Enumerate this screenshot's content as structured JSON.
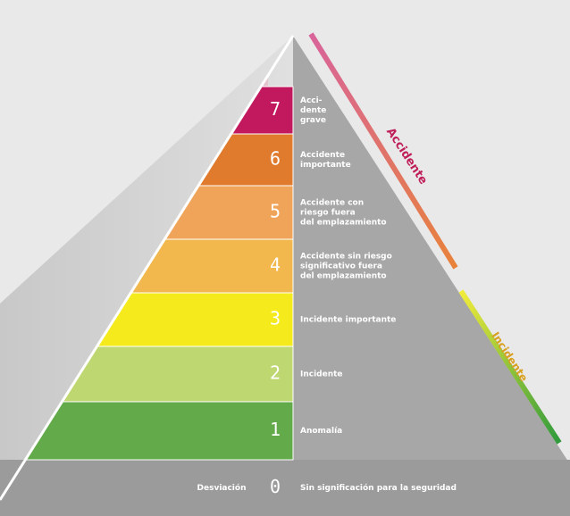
{
  "side_labels": {
    "accident": "Accidente",
    "incident": "Incidente"
  },
  "levels": [
    {
      "number": "0",
      "left_label": "Desviación",
      "lines": [
        "Sin significación para la seguridad"
      ]
    },
    {
      "number": "1",
      "lines": [
        "Anomalía"
      ]
    },
    {
      "number": "2",
      "lines": [
        "Incidente"
      ]
    },
    {
      "number": "3",
      "lines": [
        "Incidente importante"
      ]
    },
    {
      "number": "4",
      "lines": [
        "Accidente sin riesgo",
        "significativo fuera",
        "del emplazamiento"
      ]
    },
    {
      "number": "5",
      "lines": [
        "Accidente con",
        "riesgo fuera",
        "del emplazamiento"
      ]
    },
    {
      "number": "6",
      "lines": [
        "Accidente",
        "importante"
      ]
    },
    {
      "number": "7",
      "lines": [
        "Acci-",
        "dente",
        "grave"
      ]
    }
  ]
}
